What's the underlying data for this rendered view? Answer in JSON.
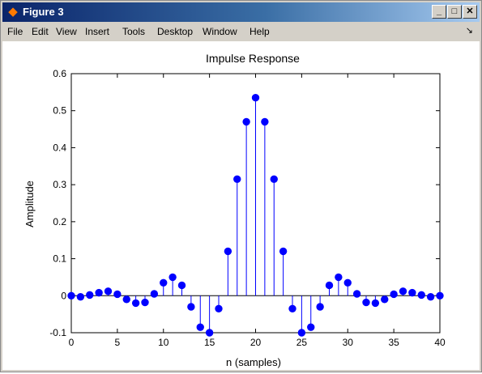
{
  "window": {
    "title": "Figure 3",
    "controls": [
      "_",
      "□",
      "✕"
    ]
  },
  "menubar": {
    "items": [
      "File",
      "Edit",
      "View",
      "Insert",
      "Tools",
      "Desktop",
      "Window",
      "Help"
    ],
    "arrow": "↘"
  },
  "colors": {
    "stem": "#0000ff",
    "marker": "#0000ff",
    "baseline": "#000000"
  },
  "chart_data": {
    "type": "stem",
    "title": "Impulse Response",
    "xlabel": "n (samples)",
    "ylabel": "Amplitude",
    "xlim": [
      0,
      40
    ],
    "ylim": [
      -0.1,
      0.6
    ],
    "xticks": [
      0,
      5,
      10,
      15,
      20,
      25,
      30,
      35,
      40
    ],
    "yticks": [
      -0.1,
      0,
      0.1,
      0.2,
      0.3,
      0.4,
      0.5,
      0.6
    ],
    "ytick_labels": [
      "-0.1",
      "0",
      "0.1",
      "0.2",
      "0.3",
      "0.4",
      "0.5",
      "0.6"
    ],
    "grid": false,
    "x": [
      0,
      1,
      2,
      3,
      4,
      5,
      6,
      7,
      8,
      9,
      10,
      11,
      12,
      13,
      14,
      15,
      16,
      17,
      18,
      19,
      20,
      21,
      22,
      23,
      24,
      25,
      26,
      27,
      28,
      29,
      30,
      31,
      32,
      33,
      34,
      35,
      36,
      37,
      38,
      39,
      40
    ],
    "y": [
      0,
      -0.003,
      0.002,
      0.008,
      0.012,
      0.004,
      -0.01,
      -0.02,
      -0.018,
      0.005,
      0.035,
      0.05,
      0.028,
      -0.03,
      -0.085,
      -0.1,
      -0.035,
      0.12,
      0.315,
      0.47,
      0.535,
      0.47,
      0.315,
      0.12,
      -0.035,
      -0.1,
      -0.085,
      -0.03,
      0.028,
      0.05,
      0.035,
      0.005,
      -0.018,
      -0.02,
      -0.01,
      0.004,
      0.012,
      0.008,
      0.002,
      -0.003,
      0
    ]
  }
}
